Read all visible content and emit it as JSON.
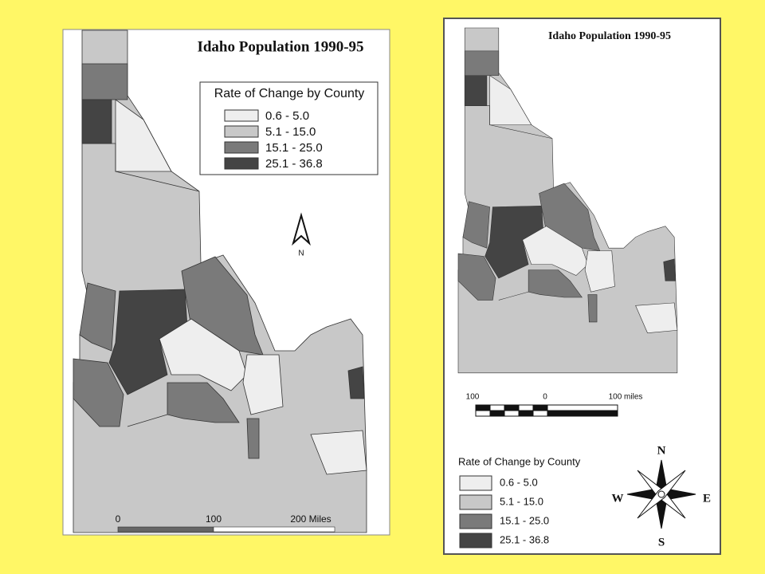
{
  "maps": [
    {
      "title": "Idaho Population 1990-95",
      "legend": {
        "title": "Rate of Change by County",
        "classes": [
          "0.6 - 5.0",
          "5.1 - 15.0",
          "15.1 - 25.0",
          "25.1 - 36.8"
        ]
      },
      "north_label": "N",
      "scale_labels": [
        "0",
        "100",
        "200 Miles"
      ]
    },
    {
      "title": "Idaho Population 1990-95",
      "scale_labels": [
        "100",
        "0",
        "100 miles"
      ],
      "legend": {
        "title": "Rate of Change by County",
        "classes": [
          "0.6 - 5.0",
          "5.1 -  15.0",
          "15.1 - 25.0",
          "25.1 - 36.8"
        ]
      },
      "compass": [
        "N",
        "S",
        "E",
        "W"
      ]
    }
  ]
}
